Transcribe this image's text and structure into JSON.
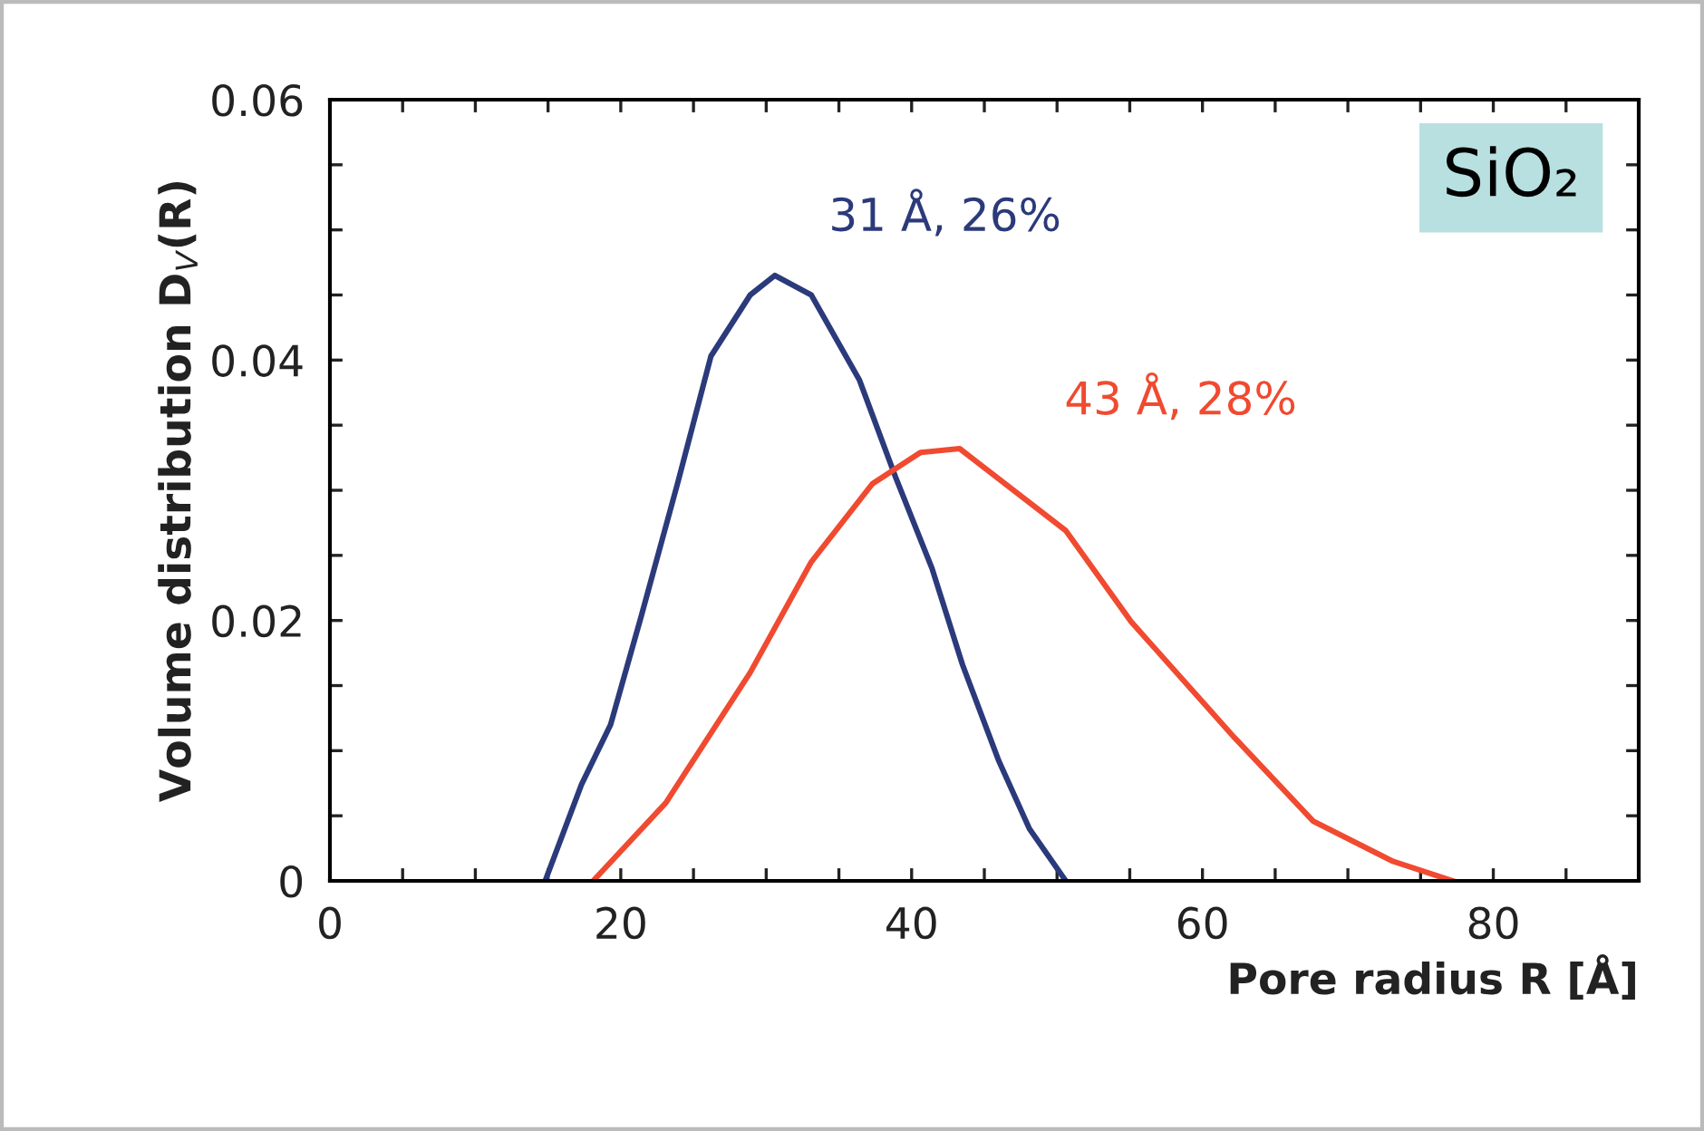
{
  "chart_data": {
    "type": "line",
    "xlabel": "Pore radius R [Å]",
    "ylabel": "Volume distribution D$_{V}$(R)",
    "xlim": [
      0,
      90
    ],
    "ylim": [
      0,
      0.06
    ],
    "xticks": [
      0,
      {
        "value": 5,
        "label": null
      },
      {
        "value": 10,
        "label": null
      },
      {
        "value": 15,
        "label": null
      },
      20,
      {
        "value": 25,
        "label": null
      },
      {
        "value": 30,
        "label": null
      },
      {
        "value": 35,
        "label": null
      },
      40,
      {
        "value": 45,
        "label": null
      },
      {
        "value": 50,
        "label": null
      },
      {
        "value": 55,
        "label": null
      },
      60,
      {
        "value": 65,
        "label": null
      },
      {
        "value": 70,
        "label": null
      },
      {
        "value": 75,
        "label": null
      },
      80,
      {
        "value": 85,
        "label": null
      }
    ],
    "yticks": [
      0,
      {
        "value": 0.005,
        "label": null
      },
      {
        "value": 0.01,
        "label": null
      },
      {
        "value": 0.015,
        "label": null
      },
      0.02,
      {
        "value": 0.025,
        "label": null
      },
      {
        "value": 0.03,
        "label": null
      },
      {
        "value": 0.035,
        "label": null
      },
      0.04,
      {
        "value": 0.045,
        "label": null
      },
      {
        "value": 0.05,
        "label": null
      },
      {
        "value": 0.055,
        "label": null
      },
      0.06
    ],
    "grid": false,
    "legend": false,
    "series": [
      {
        "color": "#2b3a7a",
        "x": [
          14.8,
          17.3,
          19.3,
          21.4,
          23.9,
          26.2,
          28.9,
          30.6,
          33.1,
          36.4,
          38.9,
          41.4,
          43.5,
          46.0,
          48.1,
          50.6
        ],
        "values": [
          0,
          0.0074,
          0.012,
          0.0203,
          0.0305,
          0.0403,
          0.045,
          0.0465,
          0.045,
          0.0385,
          0.031,
          0.024,
          0.0166,
          0.0092,
          0.004,
          0
        ]
      },
      {
        "color": "#f04a30",
        "x": [
          18.1,
          23.1,
          28.9,
          33.1,
          37.3,
          40.6,
          43.3,
          50.6,
          55.1,
          62.2,
          67.6,
          73.1,
          77.2
        ],
        "values": [
          0,
          0.006,
          0.016,
          0.0245,
          0.0305,
          0.0329,
          0.0332,
          0.0269,
          0.0199,
          0.011,
          0.0046,
          0.0015,
          0
        ]
      }
    ],
    "annotations": [
      "31 Å, 26%",
      "43 Å, 28%",
      "SiO₂"
    ]
  }
}
